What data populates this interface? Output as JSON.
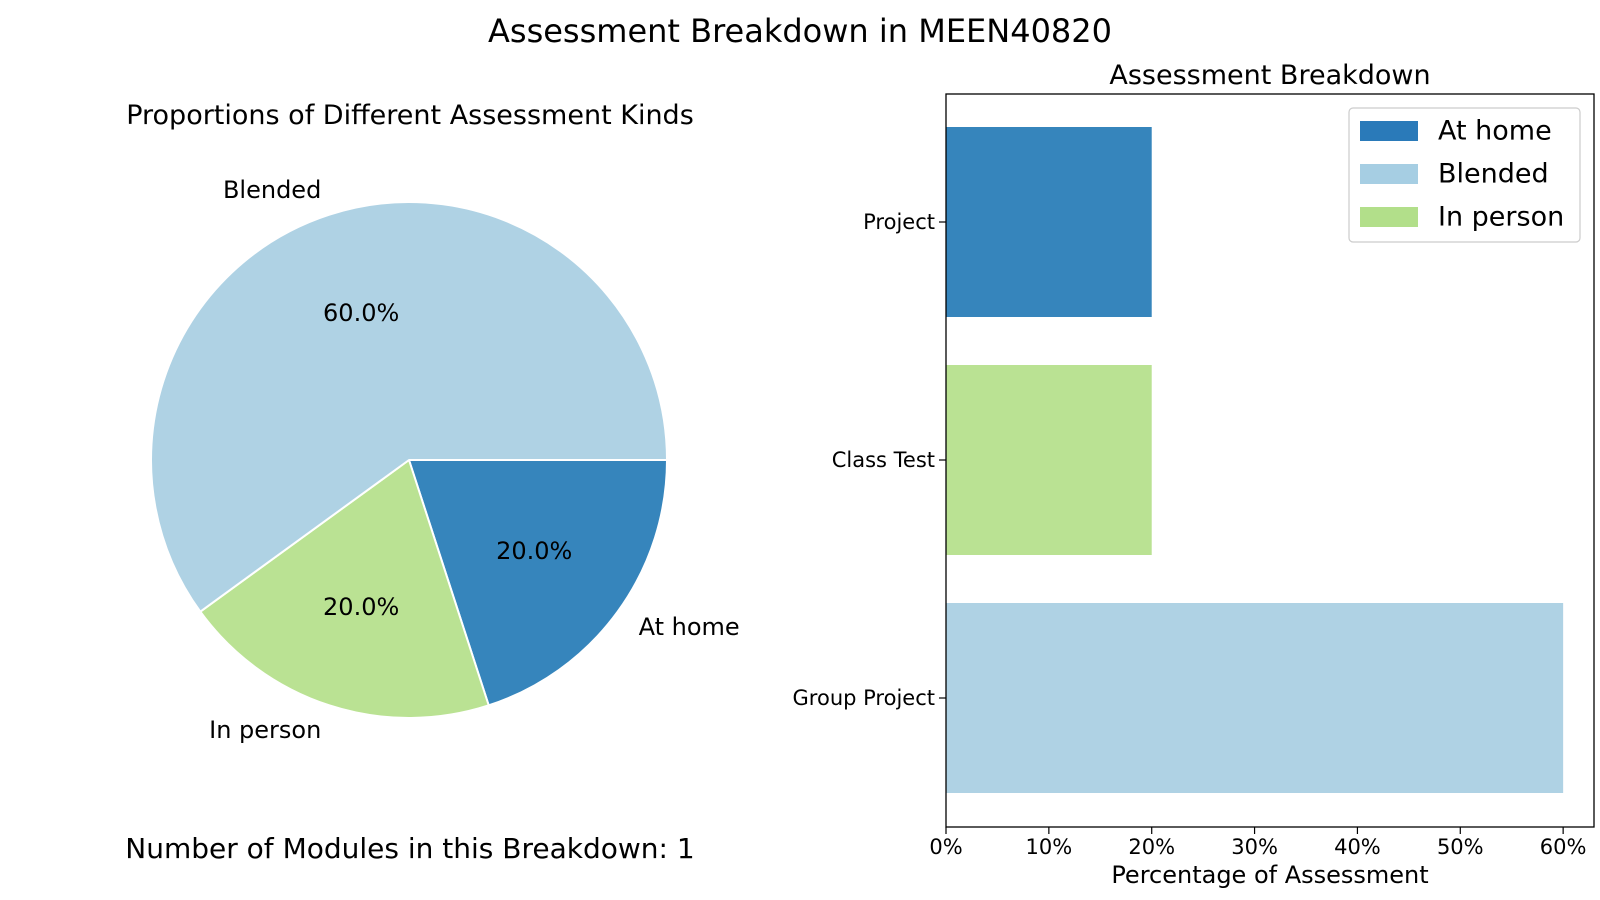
{
  "figure": {
    "title": "Assessment Breakdown in MEEN40820",
    "modules_text": "Number of Modules in this Breakdown: 1"
  },
  "chart_data": [
    {
      "type": "pie",
      "title": "Proportions of Different Assessment Kinds",
      "labels": [
        "At home",
        "In person",
        "Blended"
      ],
      "values": [
        20.0,
        20.0,
        60.0
      ],
      "value_labels": [
        "20.0%",
        "20.0%",
        "60.0%"
      ],
      "colors": [
        "#3685bc",
        "#bae293",
        "#afd2e4"
      ],
      "start_angle_deg": 0
    },
    {
      "type": "bar",
      "orientation": "horizontal",
      "title": "Assessment Breakdown",
      "categories": [
        "Project",
        "Class Test",
        "Group Project"
      ],
      "values": [
        20,
        20,
        60
      ],
      "bar_kinds": [
        "At home",
        "In person",
        "Blended"
      ],
      "bar_colors": [
        "#3685bc",
        "#bae293",
        "#afd2e4"
      ],
      "xlabel": "Percentage of Assessment",
      "ylabel": "",
      "xlim": [
        0,
        63
      ],
      "xticks": [
        0,
        10,
        20,
        30,
        40,
        50,
        60
      ],
      "xtick_labels": [
        "0%",
        "10%",
        "20%",
        "30%",
        "40%",
        "50%",
        "60%"
      ],
      "grid": false,
      "legend": {
        "position": "top-right",
        "entries": [
          {
            "label": "At home",
            "color": "#2a7ab9"
          },
          {
            "label": "Blended",
            "color": "#a6cee3"
          },
          {
            "label": "In person",
            "color": "#b2df8a"
          }
        ]
      }
    }
  ]
}
